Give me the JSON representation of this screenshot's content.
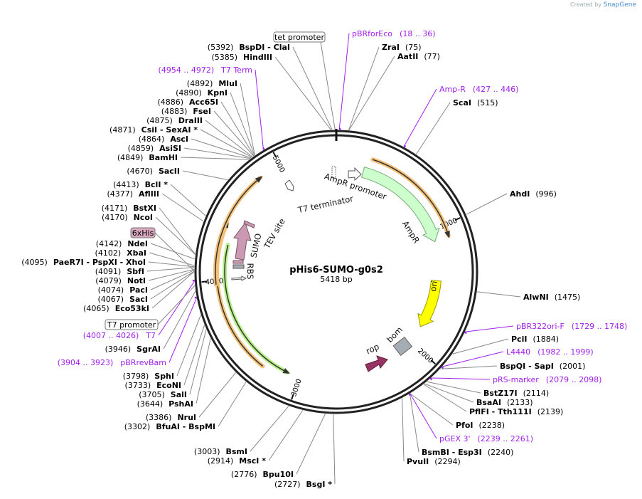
{
  "title": "pHis6-SUMO-g0s2",
  "length": "5418 bp",
  "logo": {
    "prefix": "Created by",
    "brand": "SnapGene"
  },
  "ticks": [
    "1000",
    "2000",
    "3000",
    "4000",
    "5000"
  ],
  "sites": [
    {
      "pos": "(5392)",
      "name": "BspDI  - ClaI"
    },
    {
      "pos": "(5385)",
      "name": "HindIII"
    },
    {
      "pos": "(4892)",
      "name": "MluI"
    },
    {
      "pos": "(4890)",
      "name": "KpnI"
    },
    {
      "pos": "(4886)",
      "name": "Acc65I"
    },
    {
      "pos": "(4883)",
      "name": "FseI"
    },
    {
      "pos": "(4875)",
      "name": "DraIII"
    },
    {
      "pos": "(4871)",
      "name": "CsiI  - SexAI *"
    },
    {
      "pos": "(4864)",
      "name": "AscI"
    },
    {
      "pos": "(4859)",
      "name": "AsiSI"
    },
    {
      "pos": "(4849)",
      "name": "BamHI"
    },
    {
      "pos": "(4670)",
      "name": "SacII"
    },
    {
      "pos": "(4413)",
      "name": "BclI *"
    },
    {
      "pos": "(4377)",
      "name": "AflIII"
    },
    {
      "pos": "(4171)",
      "name": "BstXI"
    },
    {
      "pos": "(4170)",
      "name": "NcoI"
    },
    {
      "pos": "(4142)",
      "name": "NdeI"
    },
    {
      "pos": "(4102)",
      "name": "XbaI"
    },
    {
      "pos": "(4095)",
      "name": "PaeR7I  - PspXI  - XhoI"
    },
    {
      "pos": "(4091)",
      "name": "SbfI"
    },
    {
      "pos": "(4079)",
      "name": "NotI"
    },
    {
      "pos": "(4074)",
      "name": "PacI"
    },
    {
      "pos": "(4067)",
      "name": "SacI"
    },
    {
      "pos": "(4065)",
      "name": "Eco53kI"
    },
    {
      "pos": "(3946)",
      "name": "SgrAI"
    },
    {
      "pos": "(3798)",
      "name": "SphI"
    },
    {
      "pos": "(3733)",
      "name": "EcoNI"
    },
    {
      "pos": "(3705)",
      "name": "SalI"
    },
    {
      "pos": "(3644)",
      "name": "PshAI"
    },
    {
      "pos": "(3386)",
      "name": "NruI"
    },
    {
      "pos": "(3302)",
      "name": "BfuAI  - BspMI"
    },
    {
      "pos": "(3003)",
      "name": "BsmI"
    },
    {
      "pos": "(2914)",
      "name": "MscI *"
    },
    {
      "pos": "(2776)",
      "name": "Bpu10I"
    },
    {
      "pos": "(2727)",
      "name": "BsgI *"
    },
    {
      "pos": "(75)",
      "name": "ZraI"
    },
    {
      "pos": "(77)",
      "name": "AatII"
    },
    {
      "pos": "(515)",
      "name": "ScaI"
    },
    {
      "pos": "(996)",
      "name": "AhdI"
    },
    {
      "pos": "(1475)",
      "name": "AlwNI"
    },
    {
      "pos": "(1884)",
      "name": "PciI"
    },
    {
      "pos": "(2001)",
      "name": "BspQI  - SapI"
    },
    {
      "pos": "(2114)",
      "name": "BstZ17I"
    },
    {
      "pos": "(2133)",
      "name": "BsaAI"
    },
    {
      "pos": "(2139)",
      "name": "PflFI  - Tth111I"
    },
    {
      "pos": "(2238)",
      "name": "PfoI"
    },
    {
      "pos": "(2240)",
      "name": "BsmBI  - Esp3I"
    },
    {
      "pos": "(2294)",
      "name": "PvuII"
    }
  ],
  "primers": [
    {
      "range": "(4954 .. 4972)",
      "name": "T7 Term"
    },
    {
      "range": "(4007 .. 4026)",
      "name": "T7"
    },
    {
      "range": "(3904 .. 3923)",
      "name": "pBRrevBam"
    },
    {
      "range": "(18 .. 36)",
      "name": "pBRforEco"
    },
    {
      "range": "(427 .. 446)",
      "name": "Amp-R"
    },
    {
      "range": "(1729 .. 1748)",
      "name": "pBR322ori-F"
    },
    {
      "range": "(1982 .. 1999)",
      "name": "L4440"
    },
    {
      "range": "(2079 .. 2098)",
      "name": "pRS-marker"
    },
    {
      "range": "(2239 .. 2261)",
      "name": "pGEX 3'"
    }
  ],
  "boxed_features": [
    {
      "name": "tet promoter"
    },
    {
      "name": "6xHis"
    },
    {
      "name": "T7 promoter"
    }
  ],
  "features": {
    "ampr_promoter": "AmpR promoter",
    "t7_terminator": "T7 terminator",
    "ampr": "AmpR",
    "ori": "ori",
    "bom": "bom",
    "rop": "rop",
    "sumo": "SUMO",
    "tev": "TEV site",
    "rbs": "RBS"
  },
  "colors": {
    "primer": "#a020f0",
    "ampr": "#ccffcc",
    "ori": "#ffff00",
    "orf_orange": "#f5c27a",
    "orf_green": "#b8f08a",
    "sumo": "#cc99b2",
    "rop": "#993366",
    "bom": "#a6acb3"
  }
}
